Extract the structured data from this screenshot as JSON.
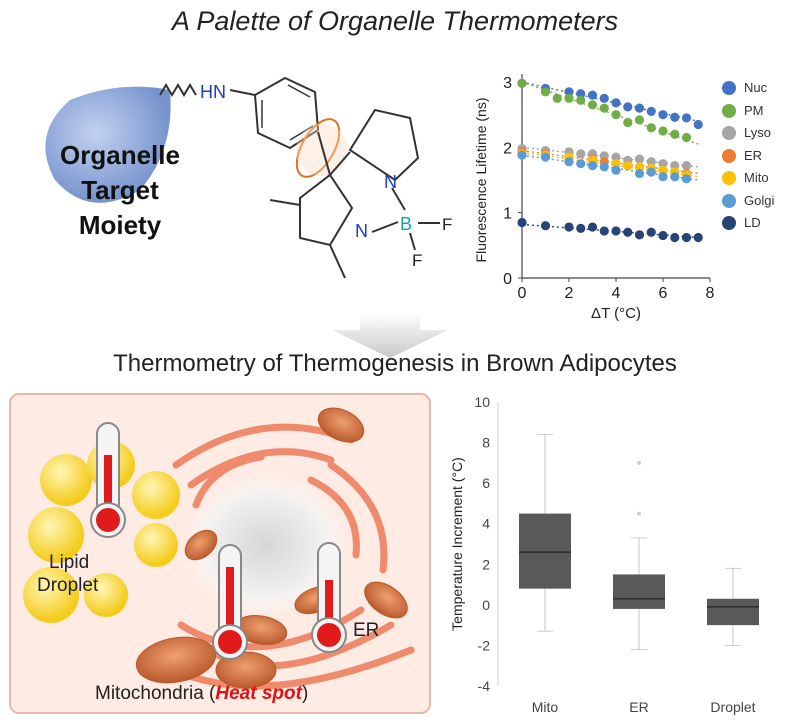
{
  "title": "A Palette of Organelle Thermometers",
  "section_title": "Thermometry of Thermogenesis in Brown Adipocytes",
  "molecule": {
    "moiety_lines": [
      "Organelle",
      "Target",
      "Moiety"
    ],
    "amine_label": "HN",
    "n_label": "N",
    "boron_label": "B",
    "fluorine_label": "F",
    "colors": {
      "bond": "#333333",
      "nitrogen": "#1a3ec8",
      "boron": "#1aa0a8",
      "rotation": "#e0731b",
      "moiety": "#6f8fce"
    }
  },
  "cell_panel": {
    "lipid_label_lines": [
      "Lipid",
      "Droplet"
    ],
    "er_label": "ER",
    "mito_label_prefix": "Mitochondria (",
    "mito_label_highlight": "Heat spot",
    "mito_label_suffix": ")",
    "colors": {
      "background": "#fdebe4",
      "border": "#e7b8a6",
      "lipid": "#f8d637",
      "membrane": "#ef8a6c",
      "thermometer_bulb": "#e01b1b",
      "highlight": "#e01010"
    }
  },
  "chart_data": [
    {
      "type": "scatter",
      "title": "",
      "xlabel": "ΔT (°C)",
      "ylabel": "Fluorescence Lifetime (ns)",
      "xlim": [
        0,
        8
      ],
      "ylim": [
        0,
        3
      ],
      "xticks": [
        "0",
        "2",
        "4",
        "6",
        "8"
      ],
      "yticks": [
        "0",
        "1",
        "2",
        "3"
      ],
      "grid": false,
      "legend_position": "right",
      "series": [
        {
          "name": "Nuc",
          "color": "#4472c4",
          "x": [
            0,
            1.0,
            2.0,
            2.5,
            3.0,
            3.5,
            4.0,
            4.5,
            5.0,
            5.5,
            6.0,
            6.5,
            7.0,
            7.5
          ],
          "y": [
            2.98,
            2.9,
            2.85,
            2.82,
            2.8,
            2.75,
            2.68,
            2.62,
            2.6,
            2.55,
            2.5,
            2.46,
            2.45,
            2.35
          ],
          "trend": [
            3.0,
            2.4
          ]
        },
        {
          "name": "PM",
          "color": "#70ad47",
          "x": [
            0,
            1.0,
            1.5,
            2.0,
            2.5,
            3.0,
            3.5,
            4.0,
            4.5,
            5.0,
            5.5,
            6.0,
            6.5,
            7.0
          ],
          "y": [
            2.98,
            2.85,
            2.75,
            2.75,
            2.72,
            2.65,
            2.6,
            2.5,
            2.38,
            2.42,
            2.3,
            2.25,
            2.2,
            2.15
          ],
          "trend": [
            3.0,
            2.05
          ]
        },
        {
          "name": "Lyso",
          "color": "#a5a5a5",
          "x": [
            0,
            1.0,
            2.0,
            2.5,
            3.0,
            3.5,
            4.0,
            4.5,
            5.0,
            5.5,
            6.0,
            6.5,
            7.0
          ],
          "y": [
            1.98,
            1.95,
            1.93,
            1.9,
            1.9,
            1.87,
            1.85,
            1.8,
            1.82,
            1.78,
            1.75,
            1.72,
            1.72
          ],
          "trend": [
            2.0,
            1.7
          ]
        },
        {
          "name": "ER",
          "color": "#ed7d31",
          "x": [
            0,
            1.0,
            2.0,
            3.0,
            3.5,
            4.0,
            4.5,
            5.0,
            5.5,
            6.0,
            6.5,
            7.0
          ],
          "y": [
            1.93,
            1.9,
            1.85,
            1.82,
            1.78,
            1.75,
            1.72,
            1.7,
            1.68,
            1.65,
            1.62,
            1.6
          ],
          "trend": [
            1.95,
            1.6
          ]
        },
        {
          "name": "Mito",
          "color": "#ffc000",
          "x": [
            0,
            1.0,
            2.0,
            3.0,
            4.0,
            4.5,
            5.0,
            5.5,
            6.0,
            6.5,
            7.0
          ],
          "y": [
            1.9,
            1.88,
            1.85,
            1.8,
            1.75,
            1.72,
            1.7,
            1.68,
            1.65,
            1.62,
            1.58
          ],
          "trend": [
            1.92,
            1.55
          ]
        },
        {
          "name": "Golgi",
          "color": "#5b9bd5",
          "x": [
            0,
            1.0,
            2.0,
            2.5,
            3.0,
            3.5,
            4.0,
            5.0,
            5.5,
            6.0,
            6.5,
            7.0
          ],
          "y": [
            1.88,
            1.85,
            1.78,
            1.75,
            1.72,
            1.7,
            1.65,
            1.6,
            1.62,
            1.55,
            1.55,
            1.52
          ],
          "trend": [
            1.88,
            1.5
          ]
        },
        {
          "name": "LD",
          "color": "#264478",
          "x": [
            0,
            1.0,
            2.0,
            2.5,
            3.0,
            3.5,
            4.0,
            4.5,
            5.0,
            5.5,
            6.0,
            6.5,
            7.0,
            7.5
          ],
          "y": [
            0.85,
            0.8,
            0.78,
            0.76,
            0.78,
            0.72,
            0.72,
            0.7,
            0.66,
            0.7,
            0.65,
            0.62,
            0.62,
            0.62
          ],
          "trend": [
            0.82,
            0.62
          ]
        }
      ]
    },
    {
      "type": "box",
      "title": "",
      "xlabel": "",
      "ylabel": "Temperature Increment (°C)",
      "ylim": [
        -4,
        10
      ],
      "yticks": [
        "-4",
        "-2",
        "0",
        "2",
        "4",
        "6",
        "8",
        "10"
      ],
      "categories": [
        "Mito",
        "ER",
        "Droplet"
      ],
      "box_color": "#595959",
      "boxes": [
        {
          "name": "Mito",
          "min": -1.3,
          "q1": 0.8,
          "median": 2.6,
          "q3": 4.5,
          "max": 8.4,
          "outliers": []
        },
        {
          "name": "ER",
          "min": -2.2,
          "q1": -0.2,
          "median": 0.3,
          "q3": 1.5,
          "max": 3.3,
          "outliers": [
            4.5,
            7.0
          ]
        },
        {
          "name": "Droplet",
          "min": -2.0,
          "q1": -1.0,
          "median": -0.1,
          "q3": 0.3,
          "max": 1.8,
          "outliers": []
        }
      ]
    }
  ]
}
